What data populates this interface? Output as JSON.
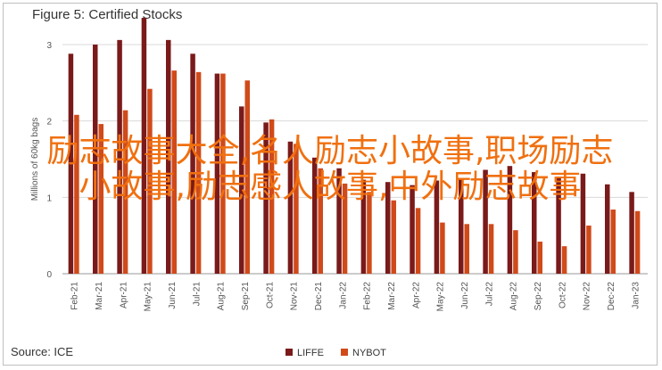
{
  "chart_data": {
    "type": "bar",
    "title": "Figure 5: Certified Stocks",
    "xlabel": "",
    "ylabel": "Millions of 60kg bags",
    "ylim": [
      0,
      3
    ],
    "yticks": [
      "0",
      "1",
      "2",
      "3"
    ],
    "grid": true,
    "legend_position": "bottom",
    "categories": [
      "Feb-21",
      "Mar-21",
      "Apr-21",
      "May-21",
      "Jun-21",
      "Jul-21",
      "Aug-21",
      "Sep-21",
      "Oct-21",
      "Nov-21",
      "Dec-21",
      "Jan-22",
      "Feb-22",
      "Mar-22",
      "Apr-22",
      "May-22",
      "Jun-22",
      "Jul-22",
      "Aug-22",
      "Sep-22",
      "Oct-22",
      "Nov-22",
      "Dec-22",
      "Jan-23"
    ],
    "series": [
      {
        "name": "LIFFE",
        "color": "#7a1a1a",
        "values": [
          2.88,
          3.0,
          3.06,
          3.35,
          3.06,
          2.88,
          2.62,
          2.19,
          1.98,
          1.73,
          1.52,
          1.38,
          1.23,
          1.2,
          1.16,
          1.22,
          1.24,
          1.36,
          1.41,
          1.33,
          1.27,
          1.31,
          1.17,
          1.07
        ]
      },
      {
        "name": "NYBOT",
        "color": "#d04a1a",
        "values": [
          2.08,
          1.96,
          2.14,
          2.42,
          2.66,
          2.64,
          2.62,
          2.53,
          2.02,
          1.7,
          1.38,
          1.18,
          1.07,
          0.96,
          0.86,
          0.67,
          0.65,
          0.65,
          0.57,
          0.42,
          0.36,
          0.63,
          0.84,
          0.82
        ]
      }
    ]
  },
  "footer": {
    "source": "Source: ICE"
  },
  "overlay_text": "励志故事大全,名人励志小故事,职场励志小故事,励志感人故事,中外励志故事"
}
